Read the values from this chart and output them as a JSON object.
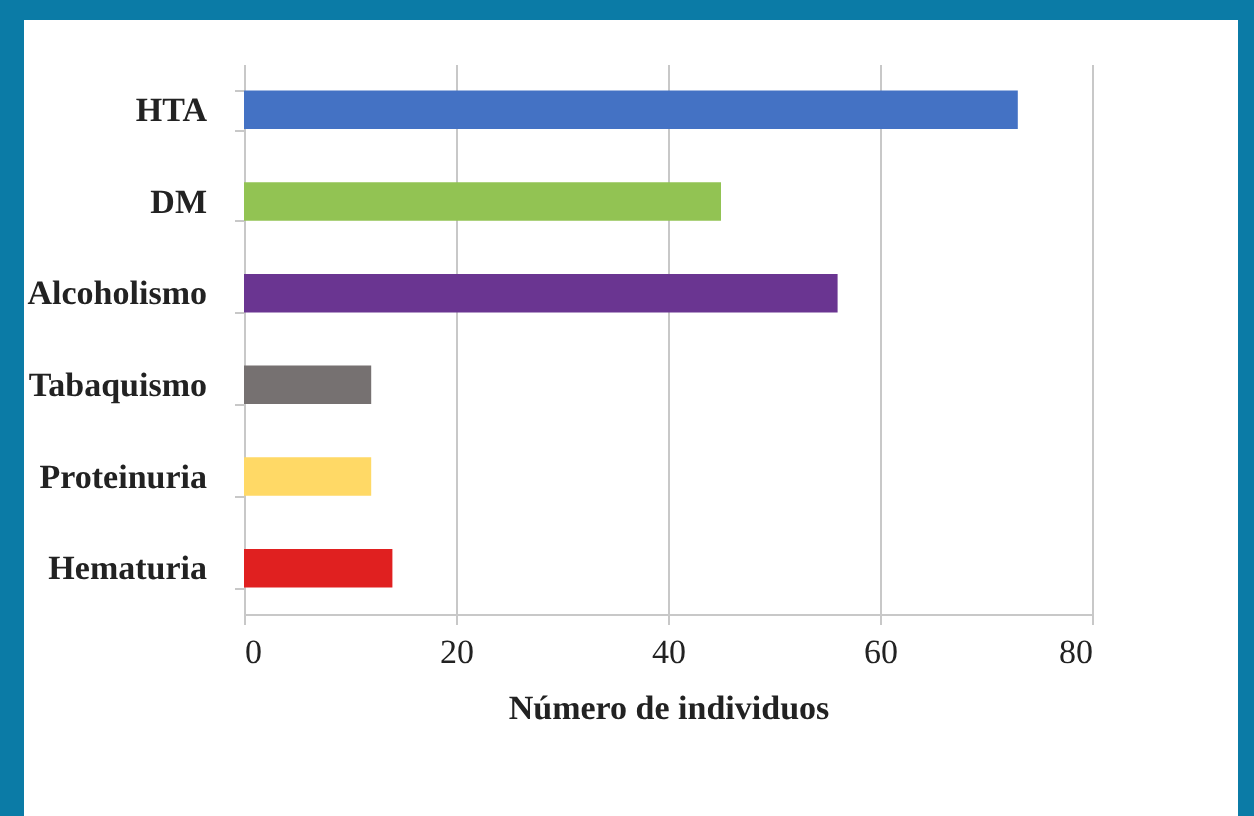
{
  "chart_data": {
    "type": "bar",
    "orientation": "horizontal",
    "xlabel": "Número de individuos",
    "categories": [
      "HTA",
      "DM",
      "Alcoholismo",
      "Tabaquismo",
      "Proteinuria",
      "Hematuria"
    ],
    "values": [
      73,
      45,
      56,
      12,
      12,
      14
    ],
    "colors": [
      "#4472c4",
      "#92c353",
      "#6a3591",
      "#767171",
      "#ffd966",
      "#e02020"
    ],
    "xlim": [
      0,
      80
    ],
    "xticks": [
      0,
      20,
      40,
      60,
      80
    ],
    "grid": "x"
  }
}
